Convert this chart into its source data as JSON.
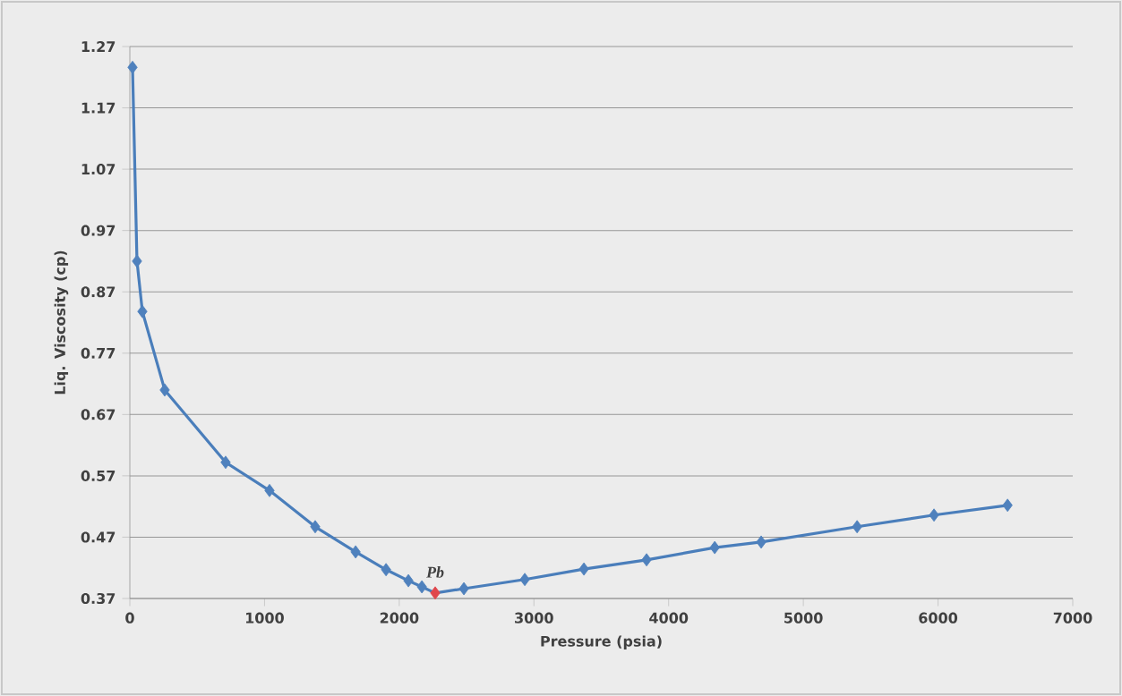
{
  "chart_data": {
    "type": "line",
    "xlabel": "Pressure (psia)",
    "ylabel": "Liq. Viscosity (cp)",
    "x": [
      20,
      53,
      93,
      259,
      711,
      1037,
      1376,
      1676,
      1902,
      2068,
      2168,
      2267,
      2480,
      2932,
      3371,
      3836,
      4342,
      4687,
      5399,
      5970,
      6516
    ],
    "series": [
      {
        "color": "#4a7ebb",
        "colors": [
          "#4f81bd",
          "#4f81bd",
          "#4f81bd",
          "#4f81bd",
          "#4f81bd",
          "#4f81bd",
          "#4f81bd",
          "#4f81bd",
          "#4f81bd",
          "#4f81bd",
          "#4f81bd",
          "#e0474c",
          "#4f81bd",
          "#4f81bd",
          "#4f81bd",
          "#4f81bd",
          "#4f81bd",
          "#4f81bd",
          "#4f81bd",
          "#4f81bd",
          "#4f81bd"
        ],
        "values": [
          1.236,
          0.92,
          0.838,
          0.71,
          0.592,
          0.546,
          0.487,
          0.446,
          0.417,
          0.399,
          0.389,
          0.379,
          0.386,
          0.401,
          0.418,
          0.433,
          0.453,
          0.462,
          0.487,
          0.506,
          0.522
        ]
      }
    ],
    "annotations": [
      {
        "text": "Pb",
        "x": 2267,
        "y": 0.379
      }
    ],
    "xlim": [
      0,
      7000
    ],
    "ylim": [
      0.37,
      1.27
    ],
    "xticks": [
      0,
      1000,
      2000,
      3000,
      4000,
      5000,
      6000,
      7000
    ],
    "yticks": [
      {
        "value": 0.37,
        "label": "0.37"
      },
      {
        "value": 0.47,
        "label": "0.47"
      },
      {
        "value": 0.57,
        "label": "0.57"
      },
      {
        "value": 0.67,
        "label": "0.67"
      },
      {
        "value": 0.77,
        "label": "0.77"
      },
      {
        "value": 0.87,
        "label": "0.87"
      },
      {
        "value": 0.97,
        "label": "0.97"
      },
      {
        "value": 1.07,
        "label": "1.07"
      },
      {
        "value": 1.17,
        "label": "1.17"
      },
      {
        "value": 1.27,
        "label": "1.27"
      }
    ],
    "grid": "y",
    "marker": "diamond",
    "line_style": "solid"
  }
}
